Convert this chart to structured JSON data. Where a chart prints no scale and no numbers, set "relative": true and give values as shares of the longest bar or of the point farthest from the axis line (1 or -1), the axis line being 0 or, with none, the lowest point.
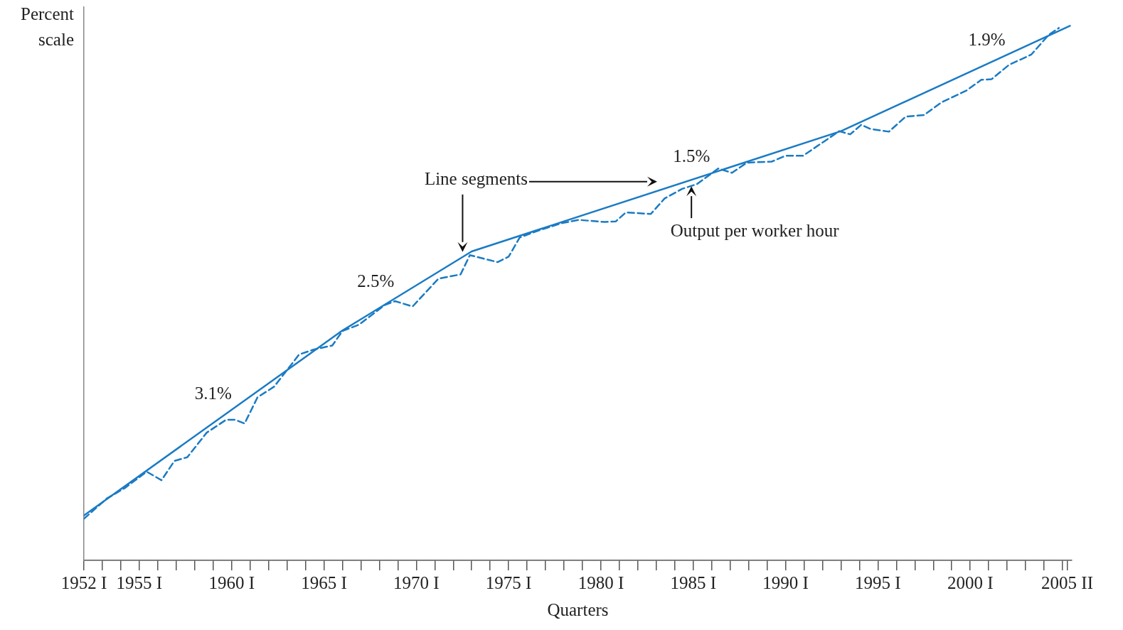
{
  "chart_data": {
    "type": "line",
    "relative": true,
    "xlabel": "Quarters",
    "ylabel": "Percent scale",
    "xlim": [
      1952,
      2005.5
    ],
    "xticks": [
      {
        "value": 1952,
        "label": "1952 I"
      },
      {
        "value": 1953,
        "label": null
      },
      {
        "value": 1954,
        "label": null
      },
      {
        "value": 1955,
        "label": "1955 I"
      },
      {
        "value": 1956,
        "label": null
      },
      {
        "value": 1957,
        "label": null
      },
      {
        "value": 1958,
        "label": null
      },
      {
        "value": 1959,
        "label": null
      },
      {
        "value": 1960,
        "label": "1960 I"
      },
      {
        "value": 1961,
        "label": null
      },
      {
        "value": 1962,
        "label": null
      },
      {
        "value": 1963,
        "label": null
      },
      {
        "value": 1964,
        "label": null
      },
      {
        "value": 1965,
        "label": "1965 I"
      },
      {
        "value": 1966,
        "label": null
      },
      {
        "value": 1967,
        "label": null
      },
      {
        "value": 1968,
        "label": null
      },
      {
        "value": 1969,
        "label": null
      },
      {
        "value": 1970,
        "label": "1970 I"
      },
      {
        "value": 1971,
        "label": null
      },
      {
        "value": 1972,
        "label": null
      },
      {
        "value": 1973,
        "label": null
      },
      {
        "value": 1974,
        "label": null
      },
      {
        "value": 1975,
        "label": "1975 I"
      },
      {
        "value": 1976,
        "label": null
      },
      {
        "value": 1977,
        "label": null
      },
      {
        "value": 1978,
        "label": null
      },
      {
        "value": 1979,
        "label": null
      },
      {
        "value": 1980,
        "label": "1980 I"
      },
      {
        "value": 1981,
        "label": null
      },
      {
        "value": 1982,
        "label": null
      },
      {
        "value": 1983,
        "label": null
      },
      {
        "value": 1984,
        "label": null
      },
      {
        "value": 1985,
        "label": "1985 I"
      },
      {
        "value": 1986,
        "label": null
      },
      {
        "value": 1987,
        "label": null
      },
      {
        "value": 1988,
        "label": null
      },
      {
        "value": 1989,
        "label": null
      },
      {
        "value": 1990,
        "label": "1990 I"
      },
      {
        "value": 1991,
        "label": null
      },
      {
        "value": 1992,
        "label": null
      },
      {
        "value": 1993,
        "label": null
      },
      {
        "value": 1994,
        "label": null
      },
      {
        "value": 1995,
        "label": "1995 I"
      },
      {
        "value": 1996,
        "label": null
      },
      {
        "value": 1997,
        "label": null
      },
      {
        "value": 1998,
        "label": null
      },
      {
        "value": 1999,
        "label": null
      },
      {
        "value": 2000,
        "label": "2000 I"
      },
      {
        "value": 2001,
        "label": null
      },
      {
        "value": 2002,
        "label": null
      },
      {
        "value": 2003,
        "label": null
      },
      {
        "value": 2004,
        "label": null
      },
      {
        "value": 2005,
        "label": null
      },
      {
        "value": 2005.25,
        "label": "2005 II"
      }
    ],
    "grid": false,
    "legend": false,
    "marker": "none",
    "series": [
      {
        "color": "#1a7bc4",
        "line_style": "solid",
        "x": [
          1952,
          1966,
          1973,
          1993,
          2005.4
        ],
        "values": [
          0.084,
          0.43,
          0.578,
          0.803,
          1.0
        ]
      },
      {
        "color": "#1a7bc4",
        "line_style": "dashed",
        "x": [
          1952.0,
          1953.25,
          1954.2,
          1955.4,
          1956.2,
          1956.9,
          1957.6,
          1958.65,
          1959.7,
          1960.2,
          1960.7,
          1961.4,
          1962.3,
          1963.65,
          1964.4,
          1965.45,
          1966.0,
          1966.9,
          1968.3,
          1968.85,
          1969.8,
          1971.2,
          1972.4,
          1972.9,
          1974.4,
          1975.0,
          1975.6,
          1976.7,
          1977.9,
          1978.8,
          1980.2,
          1980.8,
          1981.35,
          1982.7,
          1983.45,
          1984.4,
          1985.2,
          1986.35,
          1987.1,
          1987.9,
          1989.25,
          1990.0,
          1990.95,
          1992.1,
          1992.9,
          1993.5,
          1994.1,
          1994.6,
          1995.6,
          1996.5,
          1997.5,
          1998.45,
          1999.8,
          2000.6,
          2001.15,
          2002.1,
          2003.3,
          2004.25,
          2004.8
        ],
        "values": [
          0.078,
          0.116,
          0.135,
          0.166,
          0.15,
          0.186,
          0.193,
          0.239,
          0.263,
          0.263,
          0.256,
          0.305,
          0.325,
          0.385,
          0.394,
          0.402,
          0.429,
          0.441,
          0.478,
          0.485,
          0.475,
          0.527,
          0.535,
          0.571,
          0.558,
          0.568,
          0.604,
          0.618,
          0.631,
          0.637,
          0.633,
          0.634,
          0.651,
          0.648,
          0.677,
          0.695,
          0.704,
          0.733,
          0.725,
          0.744,
          0.746,
          0.757,
          0.757,
          0.784,
          0.803,
          0.797,
          0.815,
          0.807,
          0.802,
          0.83,
          0.833,
          0.857,
          0.879,
          0.899,
          0.9,
          0.927,
          0.946,
          0.983,
          0.996
        ]
      }
    ],
    "annotations": [
      {
        "text": "3.1%",
        "x": 1959,
        "y": 0.257
      },
      {
        "text": "2.5%",
        "x": 1967.8,
        "y": 0.467
      },
      {
        "text": "1.5%",
        "x": 1984.9,
        "y": 0.712
      },
      {
        "text": "1.9%",
        "x": 2000.9,
        "y": 0.929
      },
      "Line segments",
      {
        "text": "Output per worker hour",
        "x": 1984.9,
        "y": 0.7
      }
    ]
  }
}
